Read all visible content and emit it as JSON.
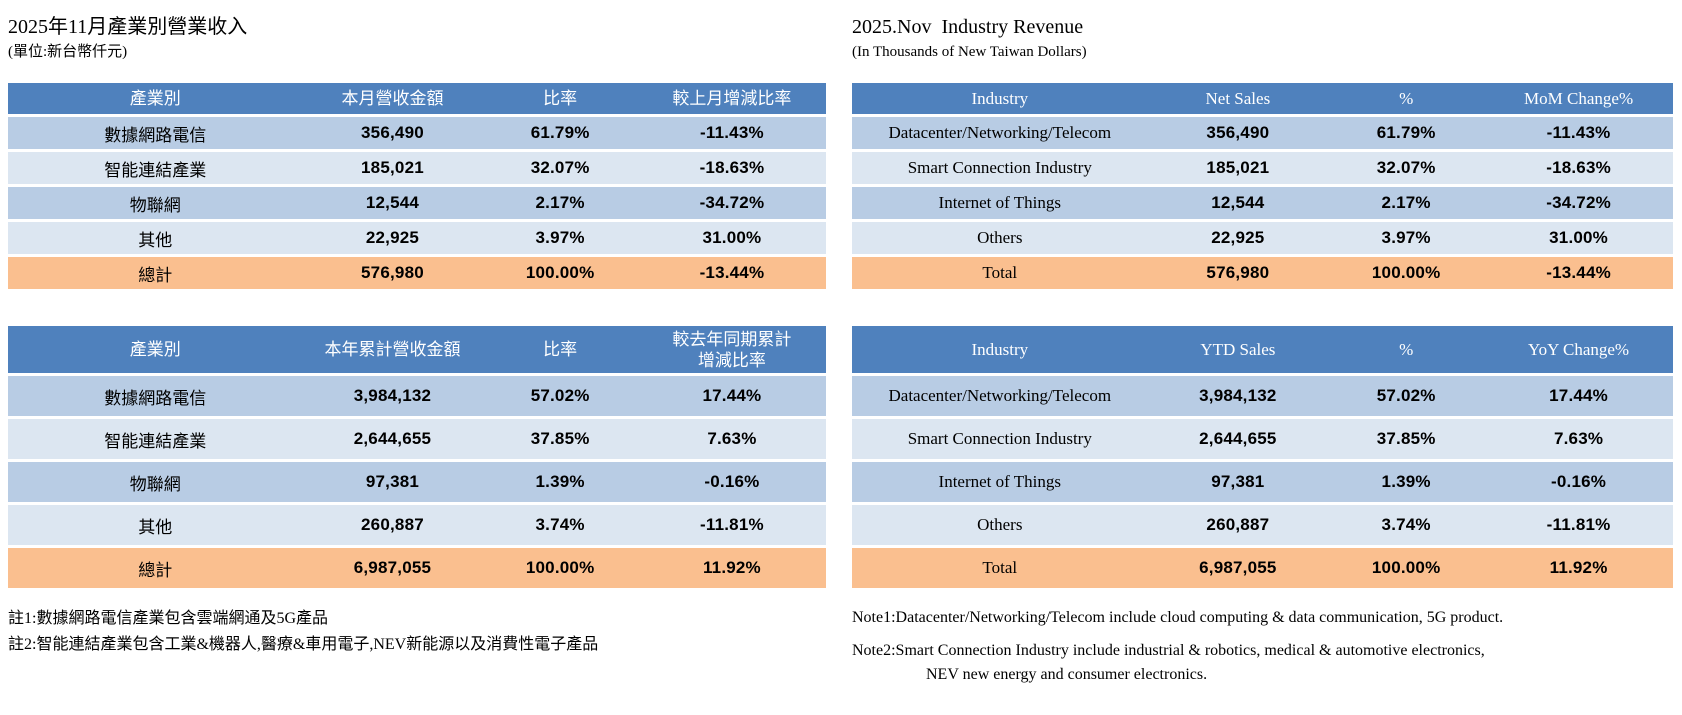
{
  "left": {
    "title": "2025年11月產業別營業收入",
    "subtitle": "(單位:新台幣仟元)",
    "monthly": {
      "headers": [
        "產業別",
        "本月營收金額",
        "比率",
        "較上月增減比率"
      ],
      "rows": [
        [
          "數據網路電信",
          "356,490",
          "61.79%",
          "-11.43%"
        ],
        [
          "智能連結產業",
          "185,021",
          "32.07%",
          "-18.63%"
        ],
        [
          "物聯網",
          "12,544",
          "2.17%",
          "-34.72%"
        ],
        [
          "其他",
          "22,925",
          "3.97%",
          "31.00%"
        ]
      ],
      "total": [
        "總計",
        "576,980",
        "100.00%",
        "-13.44%"
      ]
    },
    "ytd": {
      "headers": [
        "產業別",
        "本年累計營收金額",
        "比率",
        "較去年同期累計\n增減比率"
      ],
      "rows": [
        [
          "數據網路電信",
          "3,984,132",
          "57.02%",
          "17.44%"
        ],
        [
          "智能連結產業",
          "2,644,655",
          "37.85%",
          "7.63%"
        ],
        [
          "物聯網",
          "97,381",
          "1.39%",
          "-0.16%"
        ],
        [
          "其他",
          "260,887",
          "3.74%",
          "-11.81%"
        ]
      ],
      "total": [
        "總計",
        "6,987,055",
        "100.00%",
        "11.92%"
      ]
    },
    "notes": [
      "註1:數據網路電信產業包含雲端網通及5G產品",
      "註2:智能連結產業包含工業&機器人,醫療&車用電子,NEV新能源以及消費性電子產品"
    ]
  },
  "right": {
    "title": "2025.Nov  Industry Revenue",
    "subtitle": "(In Thousands of New Taiwan Dollars)",
    "monthly": {
      "headers": [
        "Industry",
        "Net Sales",
        "%",
        "MoM Change%"
      ],
      "rows": [
        [
          "Datacenter/Networking/Telecom",
          "356,490",
          "61.79%",
          "-11.43%"
        ],
        [
          "Smart Connection Industry",
          "185,021",
          "32.07%",
          "-18.63%"
        ],
        [
          "Internet of Things",
          "12,544",
          "2.17%",
          "-34.72%"
        ],
        [
          "Others",
          "22,925",
          "3.97%",
          "31.00%"
        ]
      ],
      "total": [
        "Total",
        "576,980",
        "100.00%",
        "-13.44%"
      ]
    },
    "ytd": {
      "headers": [
        "Industry",
        "YTD Sales",
        "%",
        "YoY Change%"
      ],
      "rows": [
        [
          "Datacenter/Networking/Telecom",
          "3,984,132",
          "57.02%",
          "17.44%"
        ],
        [
          "Smart Connection Industry",
          "2,644,655",
          "37.85%",
          "7.63%"
        ],
        [
          "Internet of Things",
          "97,381",
          "1.39%",
          "-0.16%"
        ],
        [
          "Others",
          "260,887",
          "3.74%",
          "-11.81%"
        ]
      ],
      "total": [
        "Total",
        "6,987,055",
        "100.00%",
        "11.92%"
      ]
    },
    "note1": "Note1:Datacenter/Networking/Telecom include cloud computing & data communication, 5G product.",
    "note2_line1": "Note2:Smart Connection Industry include industrial & robotics, medical & automotive electronics,",
    "note2_line2": "NEV new energy and consumer electronics."
  },
  "colors": {
    "header_bg": "#4f81bd",
    "row_odd": "#b8cce4",
    "row_even": "#dce6f1",
    "total_bg": "#fabf8f",
    "header_text": "#ffffff"
  }
}
